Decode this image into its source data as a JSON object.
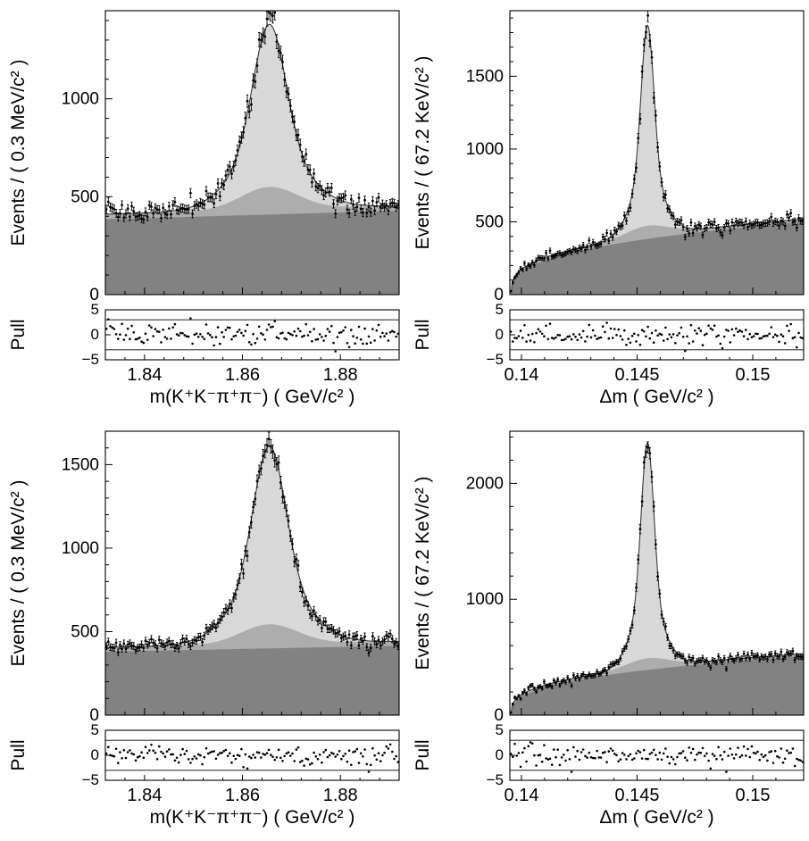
{
  "page": {
    "background": "#ffffff"
  },
  "chart_data": [
    {
      "id": "top-left-mass-fit",
      "type": "area",
      "kind": "histogram-fit-with-pull",
      "ylabel": "Events / ( 0.3 MeV/c² )",
      "xlabel": "m(K⁺K⁻π⁺π⁻) ( GeV/c² )",
      "pull_label": "Pull",
      "xlim": [
        1.832,
        1.892
      ],
      "ylim": [
        0,
        1450
      ],
      "xticks": [
        1.84,
        1.86,
        1.88
      ],
      "xtick_labels": [
        "1.84",
        "1.86",
        "1.88"
      ],
      "x_minor_step": 0.004,
      "yticks": [
        0,
        500,
        1000
      ],
      "ytick_labels": [
        "0",
        "500",
        "1000"
      ],
      "y_minor_step": 100,
      "pull": {
        "ylim": [
          -5,
          5
        ],
        "yticks": [
          5,
          0,
          -5
        ],
        "ytick_labels": [
          "5",
          "0",
          "−5"
        ],
        "band": [
          -3,
          3
        ]
      },
      "n_points": 150,
      "seed": 11,
      "model": {
        "background": {
          "shape": "linear",
          "left": 385,
          "right": 428
        },
        "mid": {
          "offset": 26,
          "bump_amp": 115,
          "bump_sigma": 0.0058
        },
        "signal": {
          "center": 1.8655,
          "sigma": 0.0032,
          "tail_ratio": 0.27,
          "tail_scale": 2.3,
          "peak_total": 1380
        }
      },
      "colors": {
        "dark": "#828282",
        "mid": "#adadad",
        "light": "#d8d8d8",
        "curve": "#3a3a3a"
      }
    },
    {
      "id": "top-right-deltam-fit",
      "type": "area",
      "kind": "histogram-fit-with-pull",
      "ylabel": "Events / ( 67.2 KeV/c² )",
      "xlabel": "Δm ( GeV/c² )",
      "pull_label": "Pull",
      "xlim": [
        0.1395,
        0.1522
      ],
      "ylim": [
        0,
        1950
      ],
      "xticks": [
        0.14,
        0.145,
        0.15
      ],
      "xtick_labels": [
        "0.14",
        "0.145",
        "0.15"
      ],
      "x_minor_step": 0.001,
      "yticks": [
        0,
        500,
        1000,
        1500
      ],
      "ytick_labels": [
        "0",
        "500",
        "1000",
        "1500"
      ],
      "y_minor_step": 100,
      "pull": {
        "ylim": [
          -5,
          5
        ],
        "yticks": [
          5,
          0,
          -5
        ],
        "ytick_labels": [
          "5",
          "0",
          "−5"
        ],
        "band": [
          -3,
          3
        ]
      },
      "n_points": 150,
      "seed": 22,
      "model": {
        "background": {
          "shape": "threshold",
          "x0": 0.13957,
          "plateau": 500,
          "power": 0.35
        },
        "mid": {
          "offset": 20,
          "bump_amp": 70,
          "bump_sigma": 0.0009
        },
        "signal": {
          "center": 0.14545,
          "sigma": 0.00027,
          "tail_ratio": 0.25,
          "tail_scale": 2.4,
          "peak_total": 1850
        }
      },
      "colors": {
        "dark": "#828282",
        "mid": "#adadad",
        "light": "#d8d8d8",
        "curve": "#3a3a3a"
      }
    },
    {
      "id": "bottom-left-mass-fit",
      "type": "area",
      "kind": "histogram-fit-with-pull",
      "ylabel": "Events / ( 0.3 MeV/c² )",
      "xlabel": "m(K⁺K⁻π⁺π⁻) ( GeV/c² )",
      "pull_label": "Pull",
      "xlim": [
        1.832,
        1.892
      ],
      "ylim": [
        0,
        1700
      ],
      "xticks": [
        1.84,
        1.86,
        1.88
      ],
      "xtick_labels": [
        "1.84",
        "1.86",
        "1.88"
      ],
      "x_minor_step": 0.004,
      "yticks": [
        0,
        500,
        1000,
        1500
      ],
      "ytick_labels": [
        "0",
        "500",
        "1000",
        "1500"
      ],
      "y_minor_step": 100,
      "pull": {
        "ylim": [
          -5,
          5
        ],
        "yticks": [
          5,
          0,
          -5
        ],
        "ytick_labels": [
          "5",
          "0",
          "−5"
        ],
        "band": [
          -3,
          3
        ]
      },
      "n_points": 150,
      "seed": 33,
      "model": {
        "background": {
          "shape": "linear",
          "left": 380,
          "right": 415
        },
        "mid": {
          "offset": 26,
          "bump_amp": 118,
          "bump_sigma": 0.0058
        },
        "signal": {
          "center": 1.8655,
          "sigma": 0.0032,
          "tail_ratio": 0.27,
          "tail_scale": 2.3,
          "peak_total": 1610
        }
      },
      "colors": {
        "dark": "#828282",
        "mid": "#adadad",
        "light": "#d8d8d8",
        "curve": "#3a3a3a"
      }
    },
    {
      "id": "bottom-right-deltam-fit",
      "type": "area",
      "kind": "histogram-fit-with-pull",
      "ylabel": "Events / ( 67.2 KeV/c² )",
      "xlabel": "Δm ( GeV/c² )",
      "pull_label": "Pull",
      "xlim": [
        0.1395,
        0.1522
      ],
      "ylim": [
        0,
        2450
      ],
      "xticks": [
        0.14,
        0.145,
        0.15
      ],
      "xtick_labels": [
        "0.14",
        "0.145",
        "0.15"
      ],
      "x_minor_step": 0.001,
      "yticks": [
        0,
        1000,
        2000
      ],
      "ytick_labels": [
        "0",
        "1000",
        "2000"
      ],
      "y_minor_step": 200,
      "pull": {
        "ylim": [
          -5,
          5
        ],
        "yticks": [
          5,
          0,
          -5
        ],
        "ytick_labels": [
          "5",
          "0",
          "−5"
        ],
        "band": [
          -3,
          3
        ]
      },
      "n_points": 150,
      "seed": 44,
      "model": {
        "background": {
          "shape": "threshold",
          "x0": 0.13957,
          "plateau": 510,
          "power": 0.35
        },
        "mid": {
          "offset": 20,
          "bump_amp": 80,
          "bump_sigma": 0.0009
        },
        "signal": {
          "center": 0.14545,
          "sigma": 0.00027,
          "tail_ratio": 0.25,
          "tail_scale": 2.4,
          "peak_total": 2350
        }
      },
      "colors": {
        "dark": "#828282",
        "mid": "#adadad",
        "light": "#d8d8d8",
        "curve": "#3a3a3a"
      }
    }
  ]
}
